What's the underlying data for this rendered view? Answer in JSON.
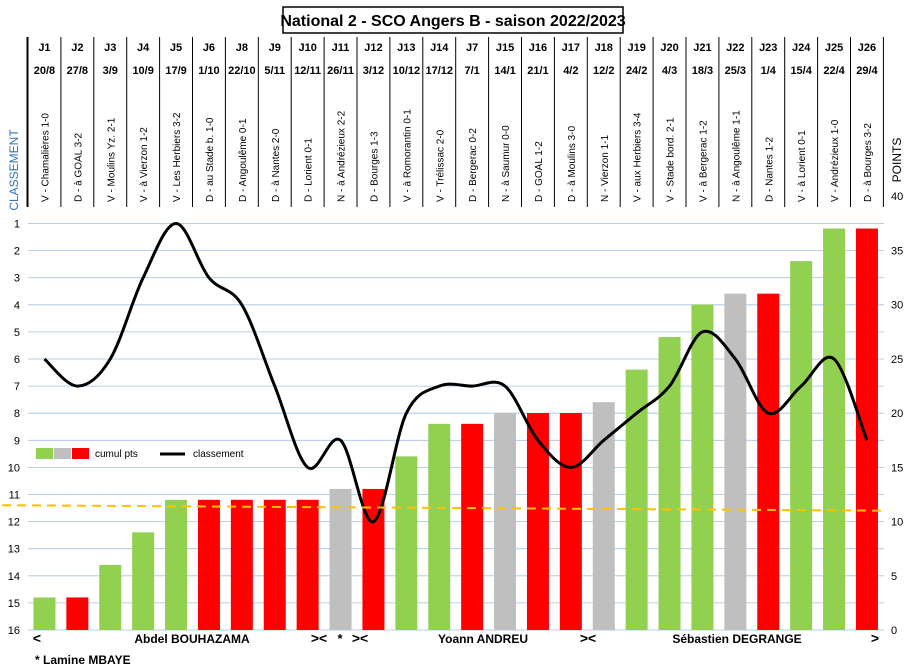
{
  "chart_data": {
    "type": "bar",
    "title": "National 2 - SCO Angers B - saison 2022/2023",
    "left_axis_label": "CLASSEMENT",
    "right_axis_label": "POINTS",
    "left_ticks": [
      1,
      2,
      3,
      4,
      5,
      6,
      7,
      8,
      9,
      10,
      11,
      12,
      13,
      14,
      15,
      16
    ],
    "right_ticks": [
      0,
      5,
      10,
      15,
      20,
      25,
      30,
      35,
      40
    ],
    "left_range": [
      1,
      16
    ],
    "right_range": [
      0,
      40
    ],
    "journees": [
      "J1",
      "J2",
      "J3",
      "J4",
      "J5",
      "J6",
      "J8",
      "J9",
      "J10",
      "J11",
      "J12",
      "J13",
      "J14",
      "J7",
      "J15",
      "J16",
      "J17",
      "J18",
      "J19",
      "J20",
      "J21",
      "J22",
      "J23",
      "J24",
      "J25",
      "J26"
    ],
    "dates": [
      "20/8",
      "27/8",
      "3/9",
      "10/9",
      "17/9",
      "1/10",
      "22/10",
      "5/11",
      "12/11",
      "26/11",
      "3/12",
      "10/12",
      "17/12",
      "7/1",
      "14/1",
      "21/1",
      "4/2",
      "12/2",
      "24/2",
      "4/3",
      "18/3",
      "25/3",
      "1/4",
      "15/4",
      "22/4",
      "29/4"
    ],
    "matches": [
      "V - Chamalières 1-0",
      "D - à GOAL 3-2",
      "V - Moulins Yz. 2-1",
      "V - à Vierzon 1-2",
      "V - Les Herbiers 3-2",
      "D - au Stade b. 1-0",
      "D - Angoulême 0-1",
      "D - à Nantes 2-0",
      "D - Lorient 0-1",
      "N - à Andrézieux 2-2",
      "D - Bourges 1-3",
      "V - à Romorantin 0-1",
      "V - Trélissac 2-0",
      "D - Bergerac 0-2",
      "N - à Saumur 0-0",
      "D - GOAL 1-2",
      "D - à Moulins 3-0",
      "N - Vierzon 1-1",
      "V - aux Herbiers 3-4",
      "V - Stade bord. 2-1",
      "V - à Bergerac 1-2",
      "N - à Angoulême 1-1",
      "D - Nantes 1-2",
      "V - à Lorient 0-1",
      "V - Andrézieux 1-0",
      "D - à Bourges 3-2"
    ],
    "results": [
      "V",
      "D",
      "V",
      "V",
      "V",
      "D",
      "D",
      "D",
      "D",
      "N",
      "D",
      "V",
      "V",
      "D",
      "N",
      "D",
      "D",
      "N",
      "V",
      "V",
      "V",
      "N",
      "D",
      "V",
      "V",
      "D"
    ],
    "series": [
      {
        "name": "cumul pts",
        "axis": "right",
        "values": [
          3,
          3,
          6,
          9,
          12,
          12,
          12,
          12,
          12,
          13,
          13,
          16,
          19,
          19,
          20,
          20,
          20,
          21,
          24,
          27,
          30,
          31,
          31,
          34,
          37,
          37
        ]
      },
      {
        "name": "classement",
        "axis": "left",
        "values": [
          6,
          7,
          6,
          3,
          1,
          3,
          4,
          7,
          10,
          9,
          12,
          8,
          7,
          7,
          7,
          9,
          10,
          9,
          8,
          7,
          5,
          6,
          8,
          7,
          6,
          9
        ]
      }
    ],
    "result_colors": {
      "V": "#92d050",
      "N": "#bfbfbf",
      "D": "#ff0000"
    },
    "dashed_line": {
      "axis": "right",
      "values": [
        11.5,
        11.0
      ],
      "color": "#ffc000"
    },
    "legend": {
      "bars": "cumul pts",
      "line": "classement"
    },
    "coaches": {
      "c1": "Abdel BOUHAZAMA",
      "c2": "Yoann ANDREU",
      "c3": "Sébastien DEGRANGE",
      "interim_mark": "*"
    },
    "markers": {
      "left": "<",
      "sep": "><",
      "right": ">"
    },
    "footnote": "* Lamine MBAYE"
  }
}
